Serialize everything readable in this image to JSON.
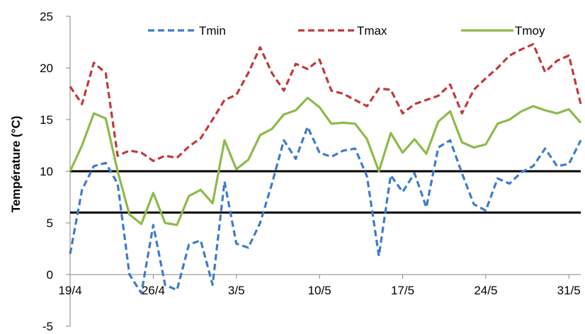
{
  "chart_data": {
    "type": "line",
    "title": "",
    "xlabel": "",
    "ylabel": "Température (°C)",
    "ylim": [
      -5,
      25
    ],
    "yticks": [
      -5,
      0,
      5,
      10,
      15,
      20,
      25
    ],
    "x_start": "19/4",
    "x_end": "1/6",
    "xtick_labels": [
      "19/4",
      "26/4",
      "3/5",
      "10/5",
      "17/5",
      "24/5",
      "31/5"
    ],
    "grid": false,
    "legend_position": "top",
    "reference_lines": [
      10,
      6
    ],
    "series": [
      {
        "name": "Tmin",
        "color": "#3d7cc9",
        "dash": "dashed",
        "values": [
          2.0,
          8.2,
          10.5,
          10.8,
          8.8,
          0.0,
          -1.8,
          4.8,
          -1.0,
          -1.5,
          2.9,
          3.3,
          -1.0,
          9.0,
          3.0,
          2.6,
          5.0,
          8.8,
          13.0,
          11.2,
          14.3,
          11.8,
          11.4,
          12.0,
          12.2,
          9.5,
          1.8,
          9.6,
          8.0,
          9.8,
          6.5,
          12.3,
          13.0,
          9.8,
          6.8,
          6.2,
          9.3,
          8.8,
          9.9,
          10.5,
          12.2,
          10.5,
          10.7,
          13.0
        ]
      },
      {
        "name": "Tmax",
        "color": "#c0393b",
        "dash": "dashed",
        "values": [
          18.2,
          16.5,
          20.5,
          19.5,
          11.5,
          12.0,
          11.8,
          11.0,
          11.5,
          11.3,
          12.4,
          13.2,
          15.0,
          16.9,
          17.4,
          19.5,
          22.0,
          19.5,
          17.8,
          20.4,
          19.9,
          20.8,
          17.8,
          17.5,
          16.9,
          16.3,
          18.0,
          17.9,
          15.6,
          16.5,
          16.9,
          17.3,
          18.4,
          15.6,
          17.9,
          19.0,
          20.0,
          21.2,
          21.8,
          22.3,
          19.6,
          20.7,
          21.2,
          16.5
        ]
      },
      {
        "name": "Tmoy",
        "color": "#8dba4a",
        "dash": "solid",
        "values": [
          10.0,
          12.5,
          15.6,
          15.1,
          10.0,
          5.8,
          4.9,
          7.9,
          5.0,
          4.8,
          7.6,
          8.2,
          6.9,
          13.0,
          10.2,
          11.1,
          13.5,
          14.1,
          15.5,
          15.9,
          17.1,
          16.2,
          14.6,
          14.7,
          14.6,
          13.1,
          10.0,
          13.7,
          11.8,
          13.1,
          11.7,
          14.8,
          15.8,
          12.8,
          12.3,
          12.6,
          14.6,
          15.0,
          15.8,
          16.3,
          15.9,
          15.6,
          16.0,
          14.7
        ]
      }
    ]
  }
}
